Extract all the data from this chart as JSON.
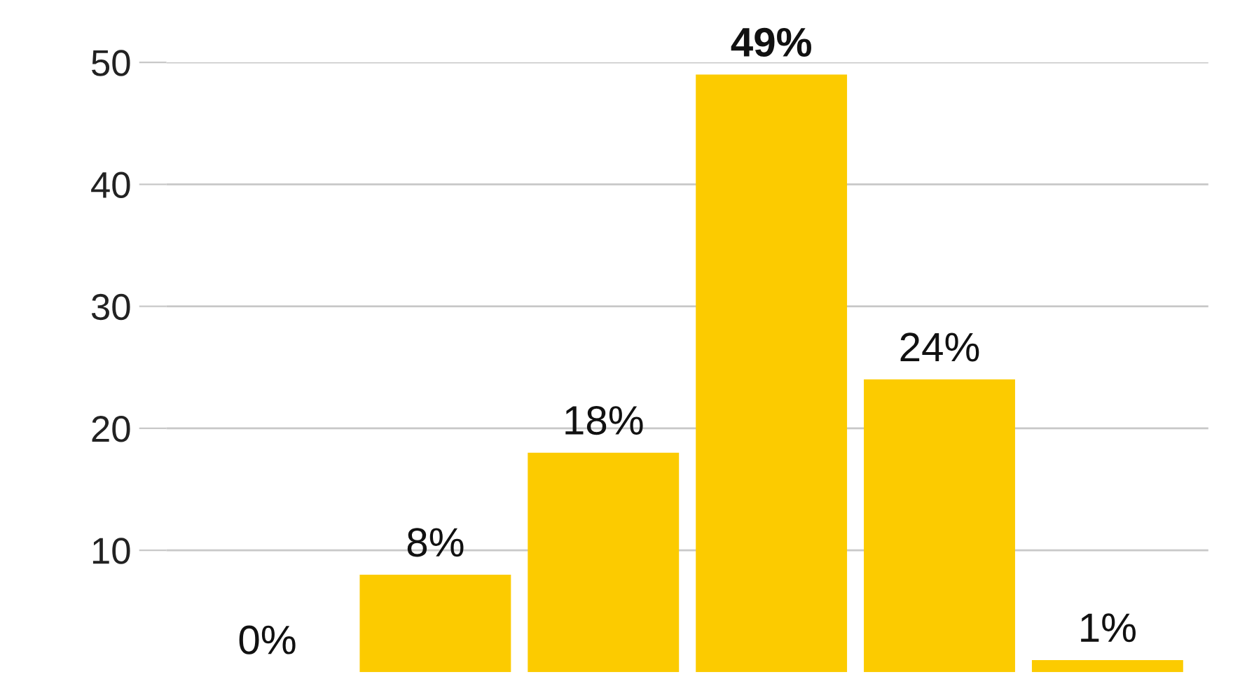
{
  "chart_data": {
    "type": "bar",
    "categories": [
      null,
      null,
      null,
      null,
      null,
      null
    ],
    "values": [
      0,
      8,
      18,
      49,
      24,
      1
    ],
    "value_labels": [
      "0%",
      "8%",
      "18%",
      "49%",
      "24%",
      "1%"
    ],
    "color": "#fccb00",
    "ylim": [
      0,
      50
    ],
    "yticks": [
      10,
      20,
      30,
      40,
      50
    ],
    "grid": "y"
  }
}
